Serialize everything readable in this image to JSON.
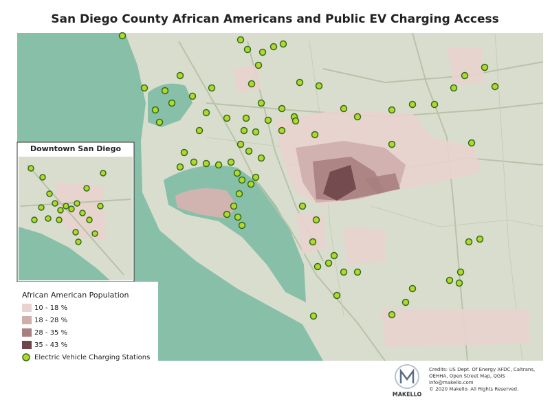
{
  "title": "San Diego County African Americans and Public EV Charging Access",
  "inset": {
    "title": "Downtown San Diego"
  },
  "legend": {
    "title": "African American Population",
    "items": [
      {
        "label": "10 - 18 %",
        "color": "#e8d3cf"
      },
      {
        "label": "18 - 28 %",
        "color": "#cfaeac"
      },
      {
        "label": "28 - 35 %",
        "color": "#a8807f"
      },
      {
        "label": "35 - 43 %",
        "color": "#6e4649"
      }
    ],
    "stations_label": "Electric Vehicle Charging Stations"
  },
  "credits": {
    "lines": [
      "Credits: US Dept. Of Energy AFDC, Caltrans,",
      "OEHHA, Open Street Map, QGIS",
      "info@makello.com",
      "© 2020 Makello. All Rights Reserved."
    ]
  },
  "logo": {
    "text": "MAKELLO"
  }
}
